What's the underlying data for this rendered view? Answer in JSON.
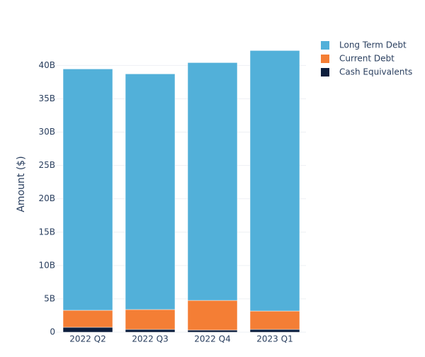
{
  "chart_data": {
    "type": "stacked-bar",
    "y_label": "Amount ($)",
    "categories": [
      "2022 Q2",
      "2022 Q3",
      "2022 Q4",
      "2023 Q1"
    ],
    "series": [
      {
        "name": "Cash Equivalents",
        "color": "#0d1e3d",
        "values": [
          740000000,
          420000000,
          320000000,
          420000000
        ]
      },
      {
        "name": "Current Debt",
        "color": "#f47e35",
        "values": [
          2550000000,
          2980000000,
          4450000000,
          2760000000
        ]
      },
      {
        "name": "Long Term Debt",
        "color": "#52b0d9",
        "values": [
          36180000000,
          35330000000,
          35650000000,
          39050000000
        ]
      }
    ],
    "ylim": [
      0,
      44500000000
    ],
    "yticks": [
      0,
      {
        "value": 5000000000,
        "label": "5B"
      },
      {
        "value": 10000000000,
        "label": "10B"
      },
      {
        "value": 15000000000,
        "label": "15B"
      },
      {
        "value": 20000000000,
        "label": "20B"
      },
      {
        "value": 25000000000,
        "label": "25B"
      },
      {
        "value": 30000000000,
        "label": "30B"
      },
      {
        "value": 35000000000,
        "label": "35B"
      },
      {
        "value": 40000000000,
        "label": "40B"
      }
    ],
    "grid": true
  }
}
